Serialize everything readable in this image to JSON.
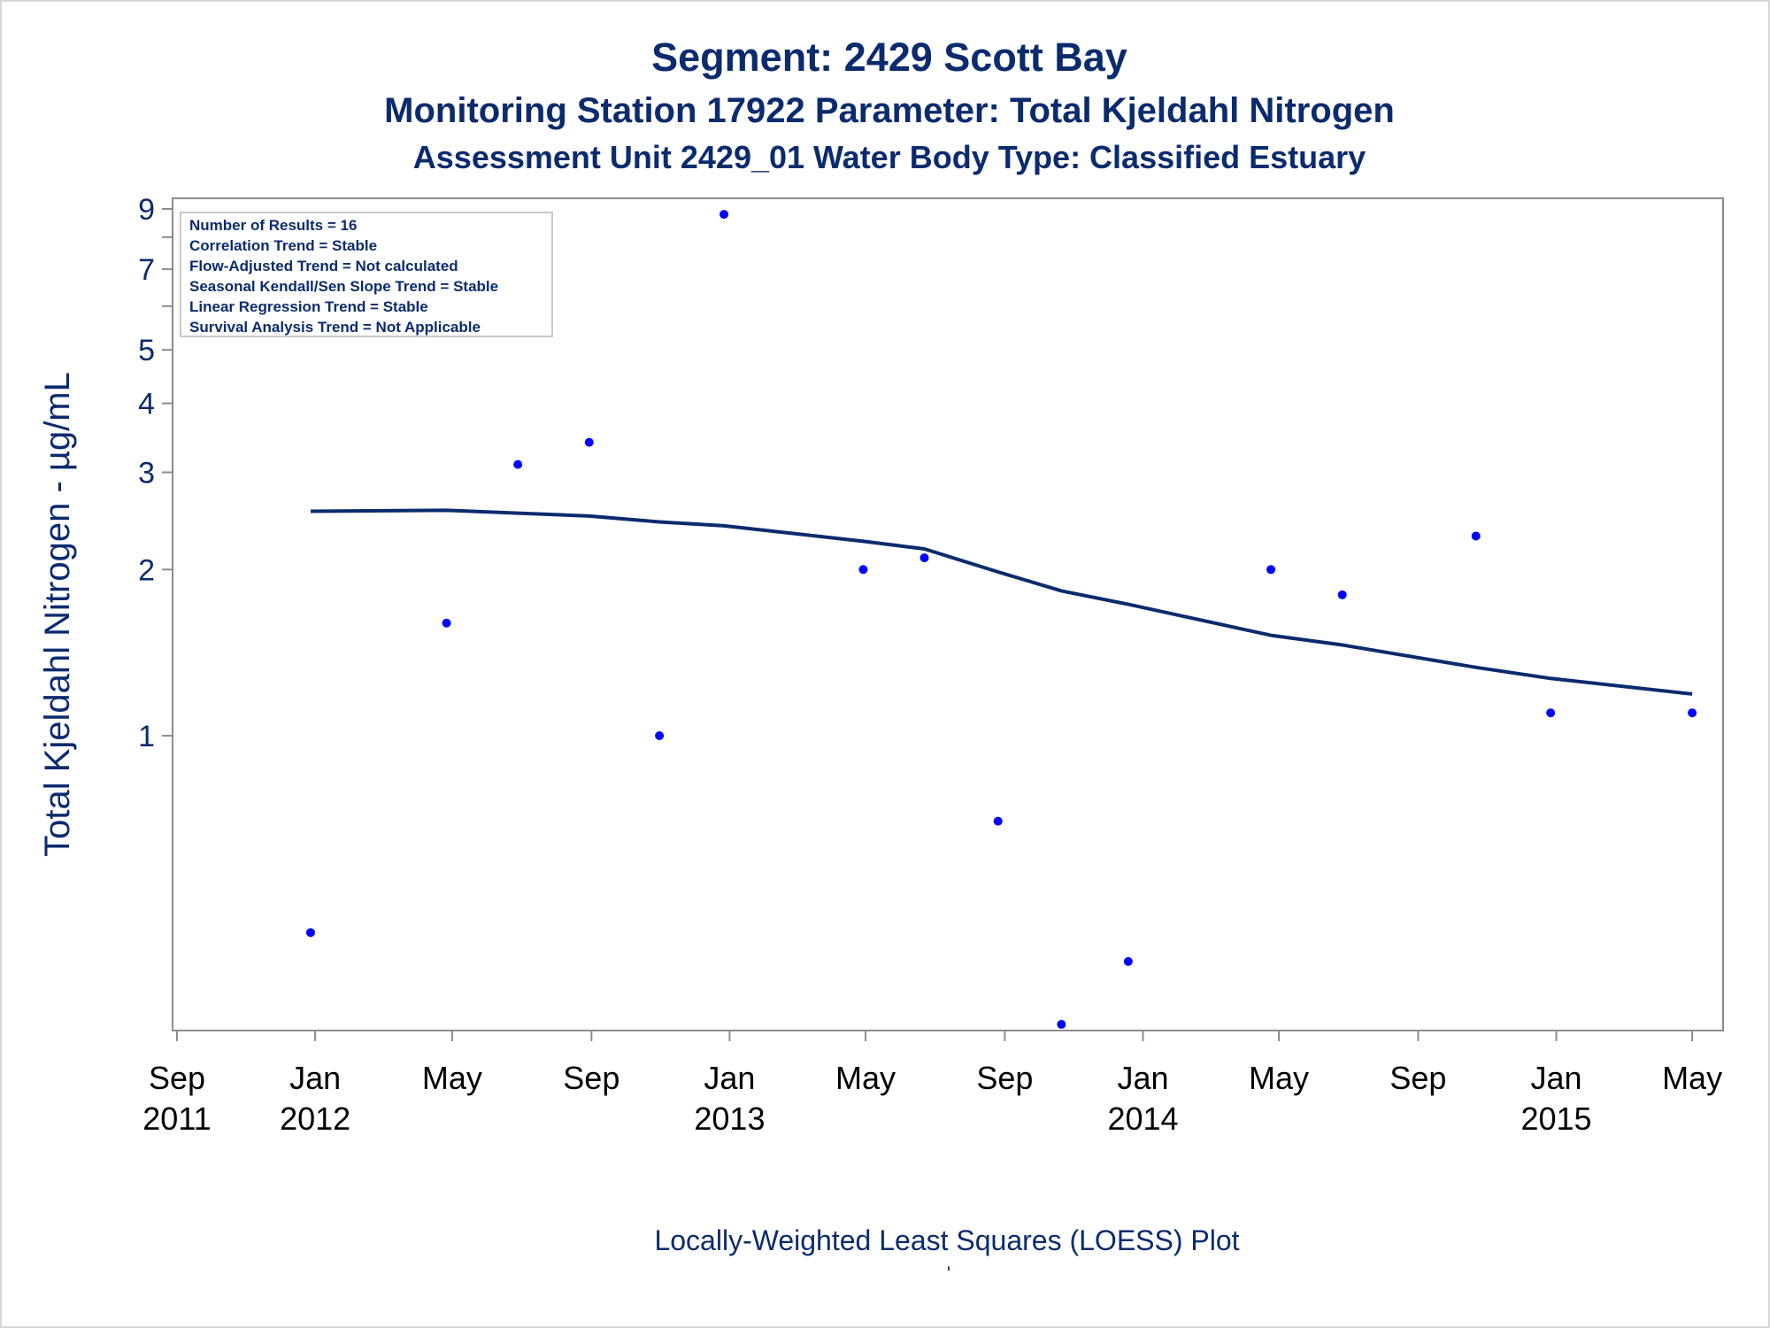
{
  "chart_data": {
    "type": "scatter",
    "title": "Segment: 2429  Scott Bay",
    "subtitle": "Monitoring Station 17922 Parameter: Total Kjeldahl Nitrogen",
    "subtitle2": "Assessment Unit 2429_01   Water Body Type: Classified Estuary",
    "ylabel": "Total Kjeldahl Nitrogen -  µg/mL",
    "footnote": "Locally-Weighted Least Squares (LOESS) Plot",
    "footnote_mark": "'",
    "yscale": "log",
    "ylim": [
      0.3,
      10.0
    ],
    "xlim": [
      "2011-09-01",
      "2015-05-15"
    ],
    "y_tick_labels": [
      "1",
      "2",
      "3",
      "4",
      "5",
      "7",
      "9"
    ],
    "y_minor_ticks": [
      6,
      8
    ],
    "x_ticks": [
      {
        "date": "2011-09-01",
        "label": [
          "Sep",
          "2011"
        ]
      },
      {
        "date": "2012-01-01",
        "label": [
          "Jan",
          "2012"
        ]
      },
      {
        "date": "2012-05-01",
        "label": [
          "May",
          ""
        ]
      },
      {
        "date": "2012-09-01",
        "label": [
          "Sep",
          ""
        ]
      },
      {
        "date": "2013-01-01",
        "label": [
          "Jan",
          "2013"
        ]
      },
      {
        "date": "2013-05-01",
        "label": [
          "May",
          ""
        ]
      },
      {
        "date": "2013-09-01",
        "label": [
          "Sep",
          ""
        ]
      },
      {
        "date": "2014-01-01",
        "label": [
          "Jan",
          "2014"
        ]
      },
      {
        "date": "2014-05-01",
        "label": [
          "May",
          ""
        ]
      },
      {
        "date": "2014-09-01",
        "label": [
          "Sep",
          ""
        ]
      },
      {
        "date": "2015-01-01",
        "label": [
          "Jan",
          "2015"
        ]
      },
      {
        "date": "2015-05-01",
        "label": [
          "May",
          ""
        ]
      }
    ],
    "series": [
      {
        "type": "scatter",
        "color": "#0000ff",
        "points": [
          {
            "x": "2011-12-28",
            "y": 0.44
          },
          {
            "x": "2012-04-26",
            "y": 1.6
          },
          {
            "x": "2012-06-28",
            "y": 3.1
          },
          {
            "x": "2012-08-30",
            "y": 3.4
          },
          {
            "x": "2012-10-31",
            "y": 1.0
          },
          {
            "x": "2012-12-27",
            "y": 8.8
          },
          {
            "x": "2013-04-29",
            "y": 2.0
          },
          {
            "x": "2013-06-22",
            "y": 2.1
          },
          {
            "x": "2013-08-26",
            "y": 0.7
          },
          {
            "x": "2013-10-21",
            "y": 0.3
          },
          {
            "x": "2013-12-19",
            "y": 0.39
          },
          {
            "x": "2014-04-24",
            "y": 2.0
          },
          {
            "x": "2014-06-26",
            "y": 1.8
          },
          {
            "x": "2014-10-22",
            "y": 2.3
          },
          {
            "x": "2014-12-27",
            "y": 1.1
          },
          {
            "x": "2015-05-01",
            "y": 1.1
          }
        ]
      },
      {
        "type": "line",
        "color": "#0b2b6e",
        "points": [
          {
            "x": "2011-12-28",
            "y": 2.55
          },
          {
            "x": "2012-04-26",
            "y": 2.56
          },
          {
            "x": "2012-06-28",
            "y": 2.53
          },
          {
            "x": "2012-08-30",
            "y": 2.5
          },
          {
            "x": "2012-10-31",
            "y": 2.44
          },
          {
            "x": "2012-12-27",
            "y": 2.4
          },
          {
            "x": "2013-04-29",
            "y": 2.25
          },
          {
            "x": "2013-06-22",
            "y": 2.18
          },
          {
            "x": "2013-08-26",
            "y": 1.98
          },
          {
            "x": "2013-10-21",
            "y": 1.83
          },
          {
            "x": "2013-12-19",
            "y": 1.73
          },
          {
            "x": "2014-04-24",
            "y": 1.52
          },
          {
            "x": "2014-06-26",
            "y": 1.46
          },
          {
            "x": "2014-10-22",
            "y": 1.33
          },
          {
            "x": "2014-12-27",
            "y": 1.27
          },
          {
            "x": "2015-05-01",
            "y": 1.19
          }
        ]
      }
    ],
    "legend_lines": [
      "Number of Results = 16",
      "Correlation Trend = Stable",
      "Flow-Adjusted Trend = Not calculated",
      "Seasonal Kendall/Sen Slope Trend = Stable",
      "Linear Regression Trend = Stable",
      "Survival Analysis Trend = Not Applicable"
    ],
    "legend_position": "top-left",
    "grid": false
  }
}
